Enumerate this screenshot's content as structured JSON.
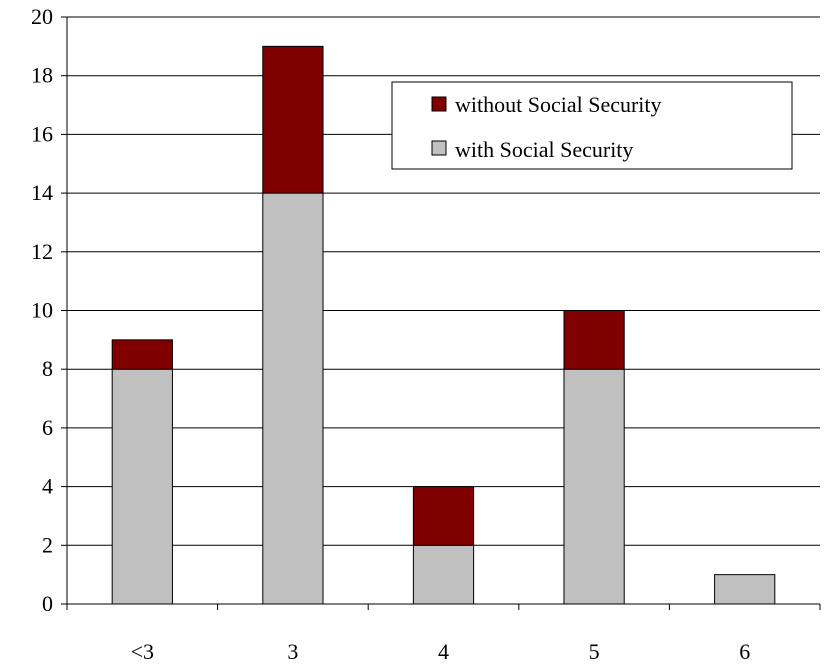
{
  "chart_data": {
    "type": "bar",
    "stacked": true,
    "categories": [
      "<3",
      "3",
      "4",
      "5",
      "6"
    ],
    "series": [
      {
        "name": "with Social Security",
        "values": [
          8,
          14,
          2,
          8,
          1
        ],
        "color": "#C0C0C0"
      },
      {
        "name": "without Social Security",
        "values": [
          1,
          5,
          2,
          2,
          0
        ],
        "color": "#800000"
      }
    ],
    "ylim": [
      0,
      20
    ],
    "y_ticks": [
      "0",
      "2",
      "4",
      "6",
      "8",
      "10",
      "12",
      "14",
      "16",
      "18",
      "20"
    ],
    "grid": true,
    "legend": {
      "placement": "top-right",
      "entries": [
        {
          "label": "without Social Security",
          "color": "#800000"
        },
        {
          "label": "with Social Security",
          "color": "#C0C0C0"
        }
      ]
    },
    "title": "",
    "xlabel": "",
    "ylabel": ""
  }
}
